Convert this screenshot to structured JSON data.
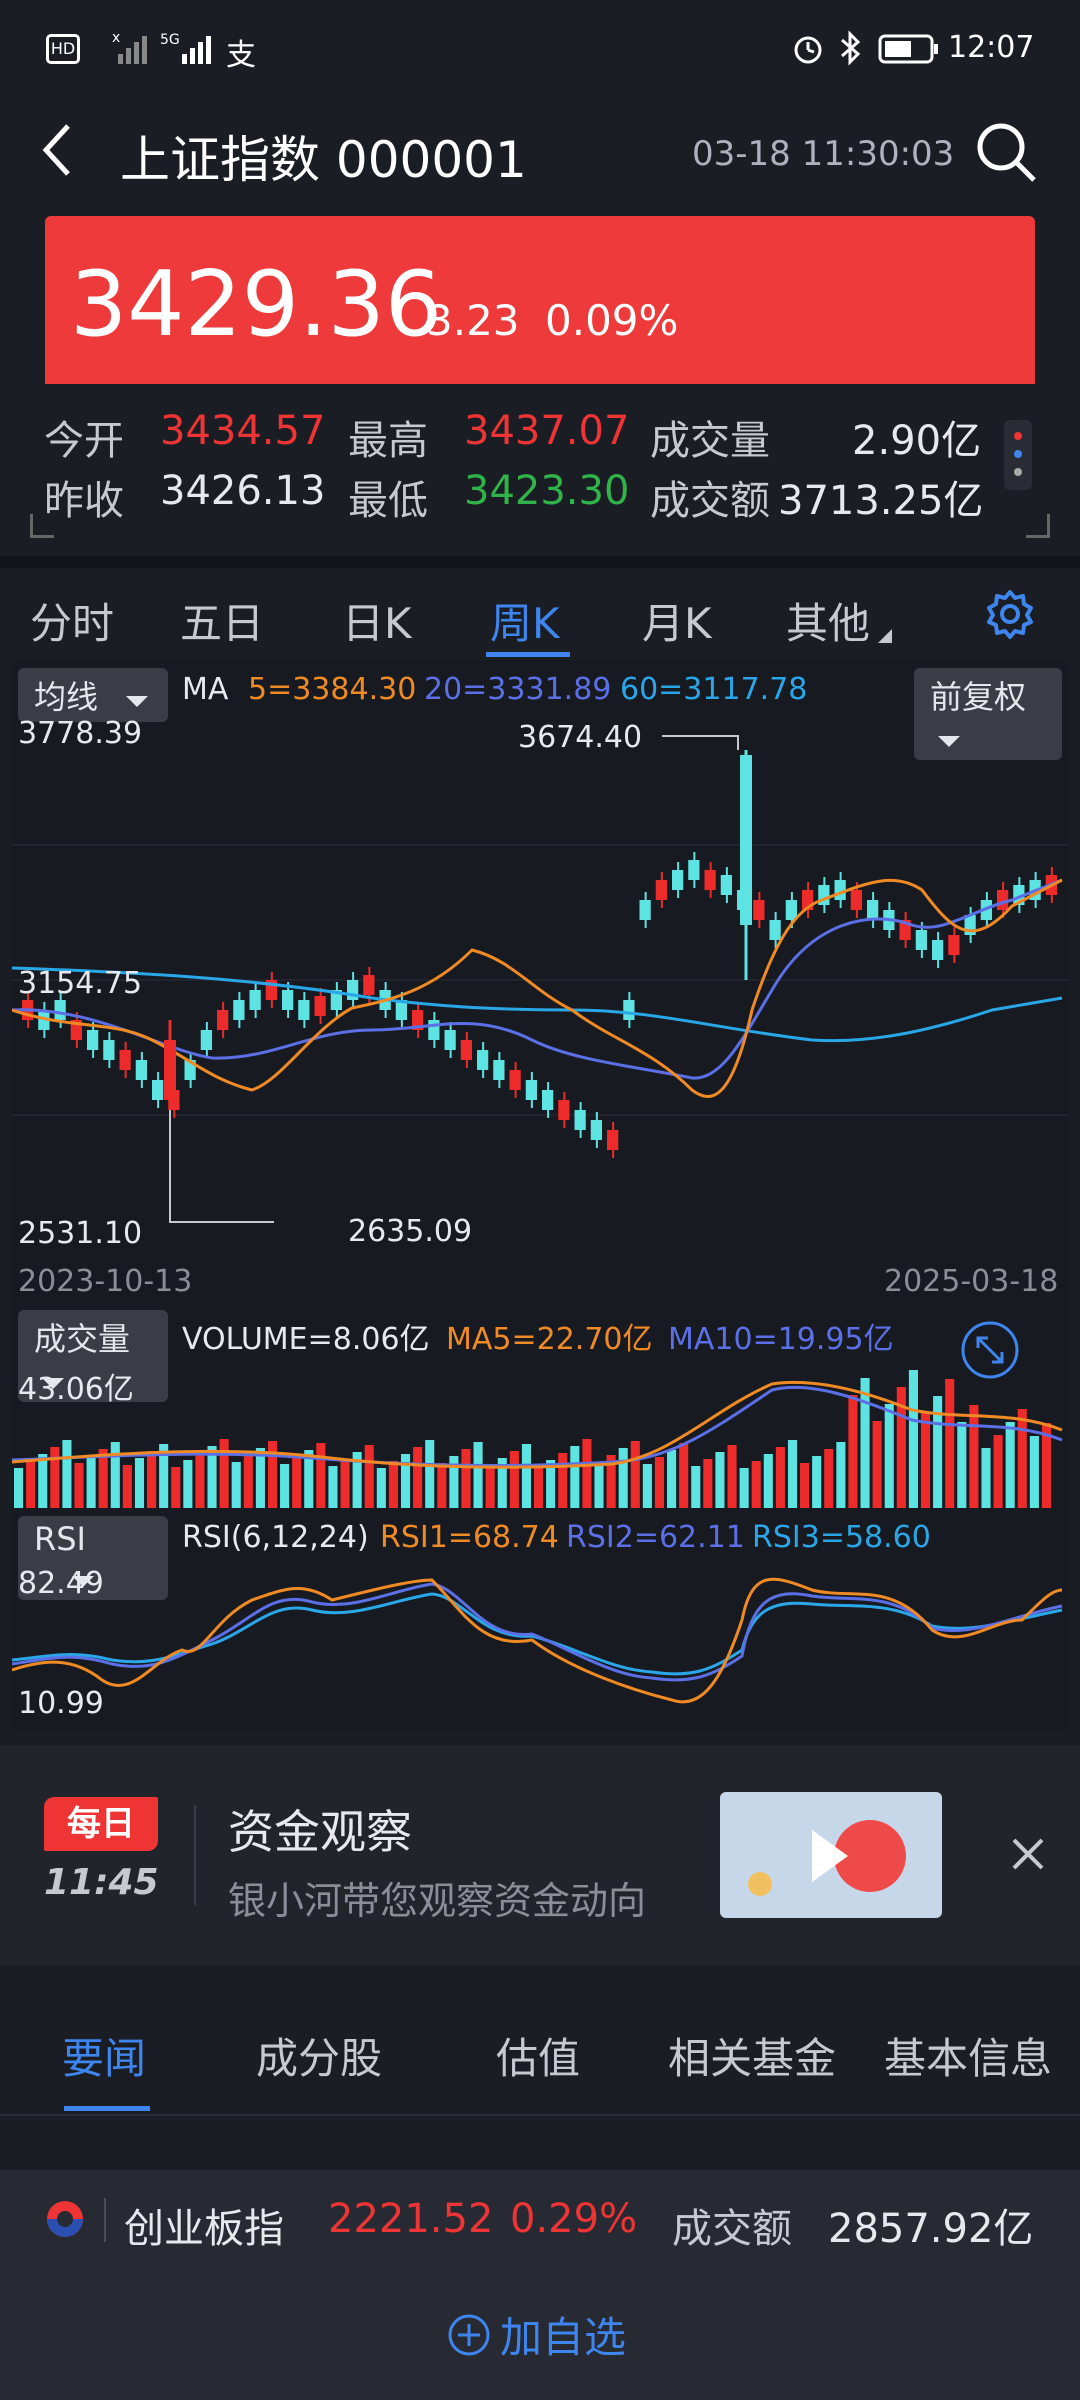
{
  "status_bar": {
    "left_icons": [
      "hd-icon",
      "signal-x-icon",
      "signal-5g-icon",
      "alipay-icon"
    ],
    "hd_label": "HD",
    "net_label": "5G",
    "time": "12:07"
  },
  "header": {
    "title": "上证指数 000001",
    "timestamp": "03-18 11:30:03"
  },
  "quote": {
    "price": "3429.36",
    "change": "3.23",
    "change_pct": "0.09%",
    "open_label": "今开",
    "open": "3434.57",
    "high_label": "最高",
    "high": "3437.07",
    "volume_label": "成交量",
    "volume": "2.90亿",
    "prev_close_label": "昨收",
    "prev_close": "3426.13",
    "low_label": "最低",
    "low": "3423.30",
    "amount_label": "成交额",
    "amount": "3713.25亿"
  },
  "tabs": [
    "分时",
    "五日",
    "日K",
    "周K",
    "月K",
    "其他"
  ],
  "active_tab": "周K",
  "chart": {
    "ma_selector": "均线",
    "ma_label": "MA",
    "ma5": "5=3384.30",
    "ma20": "20=3331.89",
    "ma60": "60=3117.78",
    "adjust": "前复权",
    "y_top": "3778.39",
    "y_mid": "3154.75",
    "y_bottom": "2531.10",
    "peak_label": "3674.40",
    "trough_label": "2635.09",
    "date_start": "2023-10-13",
    "date_end": "2025-03-18",
    "vol_selector": "成交量",
    "vol_label": "VOLUME=8.06亿",
    "vol_ma5": "MA5=22.70亿",
    "vol_ma10": "MA10=19.95亿",
    "vol_top": "43.06亿",
    "rsi_selector": "RSI",
    "rsi_label": "RSI(6,12,24)",
    "rsi1": "RSI1=68.74",
    "rsi2": "RSI2=62.11",
    "rsi3": "RSI3=58.60",
    "rsi_top": "82.49",
    "rsi_bottom": "10.99",
    "colors": {
      "up": "#ee2b2b",
      "down": "#5ee3e3",
      "ma5": "#f08a24",
      "ma20": "#5b6fe6",
      "ma60": "#2aa7e8"
    }
  },
  "promo": {
    "badge": "每日",
    "badge_time": "11:45",
    "title": "资金观察",
    "subtitle": "银小河带您观察资金动向"
  },
  "news_tabs": [
    "要闻",
    "成分股",
    "估值",
    "相关基金",
    "基本信息"
  ],
  "active_news_tab": "要闻",
  "ticker": {
    "name": "创业板指",
    "price": "2221.52",
    "pct": "0.29%",
    "amount_label": "成交额",
    "amount": "2857.92亿"
  },
  "add_watch": "加自选"
}
